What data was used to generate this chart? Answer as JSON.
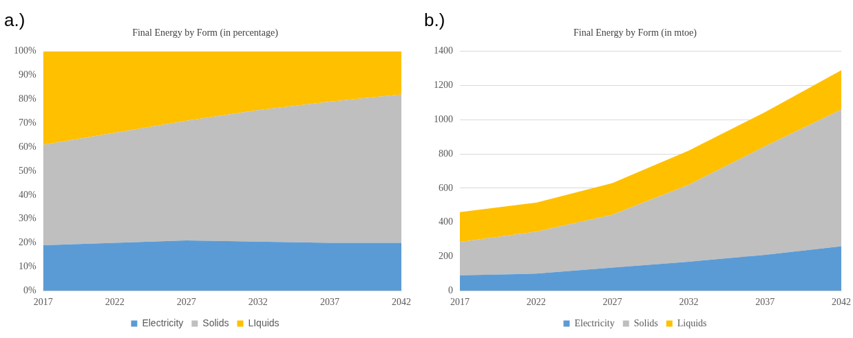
{
  "chart_data": [
    {
      "type": "area",
      "title": "Final Energy by Form (in percentage)",
      "annotations": [
        "a.)"
      ],
      "stacked": true,
      "categories": [
        "2017",
        "2022",
        "2027",
        "2032",
        "2037",
        "2042"
      ],
      "series": [
        {
          "name": "Electricity",
          "color": "#5b9bd5",
          "values": [
            19,
            20,
            21,
            20.5,
            20,
            20
          ]
        },
        {
          "name": "Solids",
          "color": "#bfbfbf",
          "values": [
            42,
            46,
            50,
            55,
            59,
            62
          ]
        },
        {
          "name": "LIquids",
          "color": "#ffc000",
          "values": [
            39,
            34,
            29,
            24.5,
            21,
            18
          ]
        }
      ],
      "ylim": [
        0,
        100
      ],
      "yticks": [
        {
          "value": 0,
          "label": "0%"
        },
        {
          "value": 10,
          "label": "10%"
        },
        {
          "value": 20,
          "label": "20%"
        },
        {
          "value": 30,
          "label": "30%"
        },
        {
          "value": 40,
          "label": "40%"
        },
        {
          "value": 50,
          "label": "50%"
        },
        {
          "value": 60,
          "label": "60%"
        },
        {
          "value": 70,
          "label": "70%"
        },
        {
          "value": 80,
          "label": "80%"
        },
        {
          "value": 90,
          "label": "90%"
        },
        {
          "value": 100,
          "label": "100%"
        }
      ],
      "grid": false,
      "legend": "bottom"
    },
    {
      "type": "area",
      "title": "Final Energy by Form (in mtoe)",
      "annotations": [
        "b.)"
      ],
      "stacked": true,
      "categories": [
        "2017",
        "2022",
        "2027",
        "2032",
        "2037",
        "2042"
      ],
      "series": [
        {
          "name": "Electricity",
          "color": "#5b9bd5",
          "values": [
            90,
            100,
            135,
            170,
            210,
            260
          ]
        },
        {
          "name": "Solids",
          "color": "#bfbfbf",
          "values": [
            195,
            245,
            310,
            450,
            635,
            800
          ]
        },
        {
          "name": "Liquids",
          "color": "#ffc000",
          "values": [
            175,
            170,
            185,
            200,
            200,
            230
          ]
        }
      ],
      "ylim": [
        0,
        1400
      ],
      "yticks": [
        0,
        200,
        400,
        600,
        800,
        1000,
        1200,
        1400
      ],
      "grid": "y",
      "legend": "bottom"
    }
  ]
}
